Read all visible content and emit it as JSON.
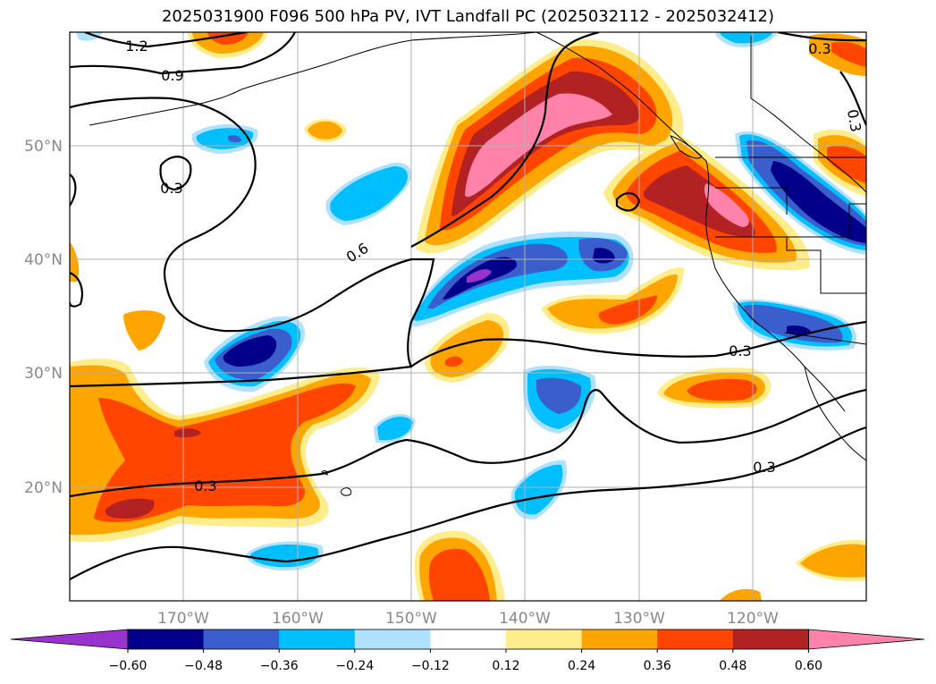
{
  "title": "2025031900 F096 500 hPa PV, IVT Landfall PC (2025032112 - 2025032412)",
  "lat_ticks": [
    "50°N",
    "40°N",
    "30°N",
    "20°N"
  ],
  "lon_ticks": [
    "170°W",
    "160°W",
    "150°W",
    "140°W",
    "130°W",
    "120°W"
  ],
  "contour_labels": [
    "1.2",
    "0.9",
    "0.3",
    "0.6",
    "0.3",
    "0.3",
    "0.3",
    "0.3",
    "0.3"
  ],
  "colorbar": {
    "colors": [
      "#9a32cd",
      "#00008b",
      "#3a5fcd",
      "#00bfff",
      "#b0e2ff",
      "#ffffff",
      "#ffec8b",
      "#ffa500",
      "#ff4500",
      "#b22222",
      "#ff82ab"
    ],
    "labels": [
      "−0.60",
      "−0.48",
      "−0.36",
      "−0.24",
      "−0.12",
      "0.12",
      "0.24",
      "0.36",
      "0.48",
      "0.60"
    ]
  }
}
